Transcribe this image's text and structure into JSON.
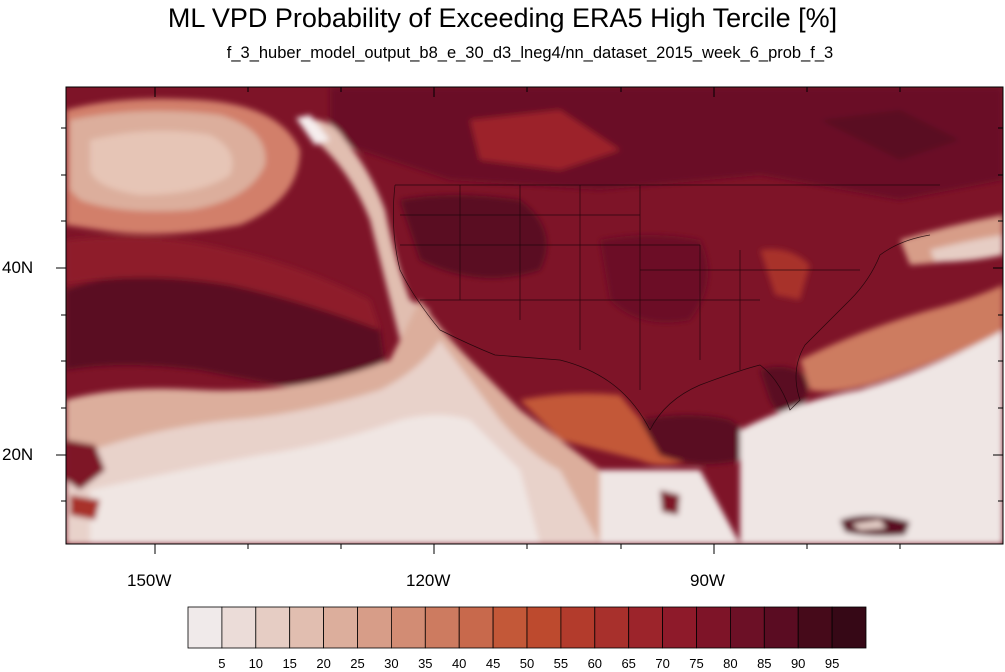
{
  "title": "ML VPD Probability of Exceeding ERA5 High Tercile [%]",
  "subtitle": "f_3_huber_model_output_b8_e_30_d3_lneg4/nn_dataset_2015_week_6_prob_f_3",
  "map": {
    "lon_labels": [
      "150W",
      "120W",
      "90W"
    ],
    "lat_labels": [
      "40N",
      "20N"
    ]
  },
  "colorbar": {
    "labels": [
      "5",
      "10",
      "15",
      "20",
      "25",
      "30",
      "35",
      "40",
      "45",
      "50",
      "55",
      "60",
      "65",
      "70",
      "75",
      "80",
      "85",
      "90",
      "95"
    ],
    "colors": [
      "#f0eaea",
      "#ebdcd8",
      "#e6cdc4",
      "#e1beb0",
      "#dcae9c",
      "#d79d88",
      "#d28c74",
      "#cd7b60",
      "#c8694c",
      "#c35838",
      "#bd4a2e",
      "#b33b2c",
      "#a8302c",
      "#9c242b",
      "#8e1a2a",
      "#7e1428",
      "#6c1026",
      "#5a0c22",
      "#460a1a",
      "#360816"
    ]
  }
}
